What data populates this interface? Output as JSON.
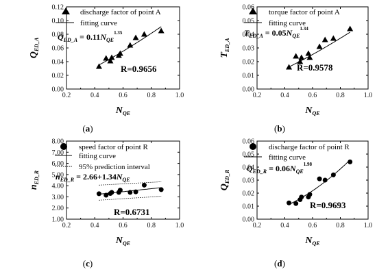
{
  "chart_data": [
    {
      "id": "a",
      "type": "scatter",
      "caption": "a",
      "xlabel": {
        "main": "N",
        "sub": "QE"
      },
      "ylabel": {
        "main": "Q",
        "sub": "ED_A"
      },
      "xlim": [
        0.2,
        1.0
      ],
      "ylim": [
        0.0,
        0.12
      ],
      "xticks": [
        "0.2",
        "0.4",
        "0.6",
        "0.8",
        "1.0"
      ],
      "yticks": [
        "0.00",
        "0.02",
        "0.04",
        "0.06",
        "0.08",
        "0.10",
        "0.12"
      ],
      "marker": "triangle",
      "series": [
        {
          "name": "discharge factor of point A",
          "x": [
            0.43,
            0.48,
            0.51,
            0.52,
            0.57,
            0.58,
            0.65,
            0.69,
            0.75,
            0.87
          ],
          "y": [
            0.033,
            0.045,
            0.041,
            0.046,
            0.049,
            0.052,
            0.064,
            0.075,
            0.08,
            0.085
          ]
        }
      ],
      "fit": {
        "name": "fitting curve",
        "coef": 0.11,
        "exp": 1.35
      },
      "equation": {
        "lhs": "Q",
        "lhs_sub": "ED_A",
        "mid": " = 0.11",
        "var": "N",
        "var_sub": "QE",
        "sup": "1.35"
      },
      "r_label": "R=0.9656",
      "legend": "top-left"
    },
    {
      "id": "b",
      "type": "scatter",
      "caption": "b",
      "xlabel": {
        "main": "N",
        "sub": "QE"
      },
      "ylabel": {
        "main": "T",
        "sub": "ED_A"
      },
      "xlim": [
        0.2,
        1.0
      ],
      "ylim": [
        0.0,
        0.06
      ],
      "xticks": [
        "0.2",
        "0.4",
        "0.6",
        "0.8",
        "1.0"
      ],
      "yticks": [
        "0.00",
        "0.01",
        "0.02",
        "0.03",
        "0.04",
        "0.05",
        "0.06"
      ],
      "marker": "triangle",
      "series": [
        {
          "name": "torque factor of point A",
          "x": [
            0.43,
            0.48,
            0.51,
            0.52,
            0.57,
            0.58,
            0.65,
            0.69,
            0.75,
            0.87
          ],
          "y": [
            0.016,
            0.024,
            0.02,
            0.023,
            0.026,
            0.023,
            0.031,
            0.036,
            0.037,
            0.044
          ]
        }
      ],
      "fit": {
        "name": "fitting curve",
        "coef": 0.05,
        "exp": 1.34
      },
      "equation": {
        "lhs": "T",
        "lhs_sub": "ED_A",
        "mid": " = 0.05",
        "var": "N",
        "var_sub": "QE",
        "sup": "1.34"
      },
      "r_label": "R=0.9578",
      "legend": "top-left"
    },
    {
      "id": "c",
      "type": "scatter",
      "caption": "c",
      "xlabel": {
        "main": "N",
        "sub": "QE"
      },
      "ylabel": {
        "main": "n",
        "sub": "ED_R"
      },
      "xlim": [
        0.2,
        1.0
      ],
      "ylim": [
        1.0,
        8.0
      ],
      "xticks": [
        "0.2",
        "0.4",
        "0.6",
        "0.8",
        "1.0"
      ],
      "yticks": [
        "1.00",
        "2.00",
        "3.00",
        "4.00",
        "5.00",
        "6.00",
        "7.00",
        "8.00"
      ],
      "marker": "circle",
      "series": [
        {
          "name": "speed factor of point R",
          "x": [
            0.43,
            0.48,
            0.51,
            0.52,
            0.57,
            0.58,
            0.65,
            0.69,
            0.75,
            0.87
          ],
          "y": [
            3.28,
            3.15,
            3.3,
            3.4,
            3.4,
            3.6,
            3.4,
            3.45,
            4.05,
            3.65
          ]
        }
      ],
      "fit": {
        "name": "fitting curve",
        "a": 2.66,
        "b": 1.34
      },
      "band": {
        "name": "95% prediction interval",
        "upper": [
          4.05,
          4.35
        ],
        "lower": [
          2.7,
          3.05
        ]
      },
      "equation": {
        "lhs": "n",
        "lhs_sub": "ED_R",
        "mid": " = 2.66+1.34",
        "var": "N",
        "var_sub": "QE",
        "sup": ""
      },
      "r_label": "R=0.6731",
      "legend": "top-left"
    },
    {
      "id": "d",
      "type": "scatter",
      "caption": "d",
      "xlabel": {
        "main": "N",
        "sub": "QE"
      },
      "ylabel": {
        "main": "Q",
        "sub": "ED_R"
      },
      "xlim": [
        0.2,
        1.0
      ],
      "ylim": [
        0.0,
        0.06
      ],
      "xticks": [
        "0.2",
        "0.4",
        "0.6",
        "0.8",
        "1.0"
      ],
      "yticks": [
        "0.00",
        "0.01",
        "0.02",
        "0.03",
        "0.04",
        "0.05",
        "0.06"
      ],
      "marker": "circle",
      "series": [
        {
          "name": "discharge factor of point R",
          "x": [
            0.43,
            0.48,
            0.51,
            0.52,
            0.57,
            0.58,
            0.65,
            0.69,
            0.75,
            0.87
          ],
          "y": [
            0.0125,
            0.012,
            0.015,
            0.017,
            0.017,
            0.019,
            0.031,
            0.03,
            0.034,
            0.044
          ]
        }
      ],
      "fit": {
        "name": "fitting curve",
        "coef": 0.06,
        "exp": 1.98
      },
      "equation": {
        "lhs": "Q",
        "lhs_sub": "ED_R",
        "mid": " = 0.06",
        "var": "N",
        "var_sub": "QE",
        "sup": "1.98"
      },
      "r_label": "R=0.9693",
      "legend": "top-left"
    }
  ]
}
